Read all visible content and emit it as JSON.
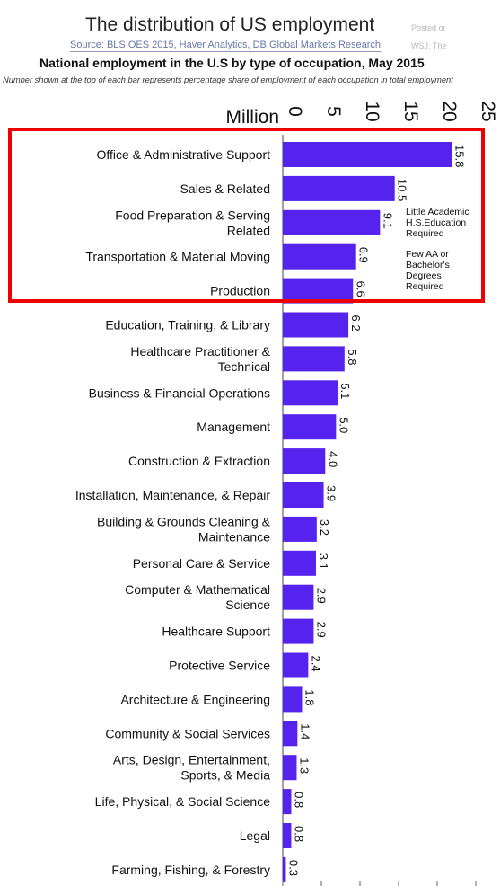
{
  "header": {
    "title": "The distribution of US employment",
    "source": "Source: BLS OES 2015, Haver Analytics, DB Global Markets Research",
    "subtitle": "National employment in the U.S by type of occupation, May 2015",
    "note": "Number shown at the top of each bar represents percentage share of employment of each occupation in total employment",
    "ghost_posted": "Posted or",
    "ghost_wsj": "WSJ: The"
  },
  "annotations": {
    "little_academic": "Little Academic\nH.S.Education\nRequired",
    "few_degrees": "Few AA or\nBachelor's\nDegrees\nRequired"
  },
  "colors": {
    "bar": "#5522ee",
    "highlight": "#ee0000"
  },
  "chart_data": {
    "type": "bar",
    "orientation": "horizontal",
    "ylabel": "Million",
    "xlim": [
      0,
      25
    ],
    "ticks": [
      "0",
      "5",
      "10",
      "15",
      "20",
      "25"
    ],
    "categories": [
      "Office & Administrative Support",
      "Sales & Related",
      "Food Preparation & Serving Related",
      "Transportation & Material Moving",
      "Production",
      "Education, Training, & Library",
      "Healthcare Practitioner & Technical",
      "Business & Financial Operations",
      "Management",
      "Construction & Extraction",
      "Installation, Maintenance, & Repair",
      "Building & Grounds Cleaning & Maintenance",
      "Personal Care & Service",
      "Computer & Mathematical Science",
      "Healthcare Support",
      "Protective Service",
      "Architecture & Engineering",
      "Community & Social Services",
      "Arts, Design, Entertainment, Sports, & Media",
      "Life, Physical, & Social Science",
      "Legal",
      "Farming, Fishing, & Forestry"
    ],
    "category_lines": [
      [
        "Office & Administrative Support"
      ],
      [
        "Sales & Related"
      ],
      [
        "Food Preparation & Serving",
        "Related"
      ],
      [
        "Transportation & Material Moving"
      ],
      [
        "Production"
      ],
      [
        "Education, Training, & Library"
      ],
      [
        "Healthcare Practitioner &",
        "Technical"
      ],
      [
        "Business & Financial Operations"
      ],
      [
        "Management"
      ],
      [
        "Construction & Extraction"
      ],
      [
        "Installation, Maintenance, & Repair"
      ],
      [
        "Building & Grounds Cleaning &",
        "Maintenance"
      ],
      [
        "Personal Care & Service"
      ],
      [
        "Computer & Mathematical",
        "Science"
      ],
      [
        "Healthcare Support"
      ],
      [
        "Protective Service"
      ],
      [
        "Architecture & Engineering"
      ],
      [
        "Community & Social Services"
      ],
      [
        "Arts, Design, Entertainment,",
        "Sports, & Media"
      ],
      [
        "Life, Physical, & Social Science"
      ],
      [
        "Legal"
      ],
      [
        "Farming, Fishing, & Forestry"
      ]
    ],
    "values": [
      21.9,
      14.5,
      12.6,
      9.5,
      9.1,
      8.5,
      8.0,
      7.1,
      6.9,
      5.5,
      5.3,
      4.4,
      4.3,
      4.0,
      4.0,
      3.3,
      2.5,
      1.9,
      1.8,
      1.1,
      1.1,
      0.4
    ],
    "share_labels": [
      "15.8",
      "10.5",
      "9.1",
      "6.9",
      "6.6",
      "6.2",
      "5.8",
      "5.1",
      "5.0",
      "4.0",
      "3.9",
      "3.2",
      "3.1",
      "2.9",
      "2.9",
      "2.4",
      "1.8",
      "1.4",
      "1.3",
      "0.8",
      "0.8",
      "0.3"
    ],
    "highlighted_rows": 5
  }
}
